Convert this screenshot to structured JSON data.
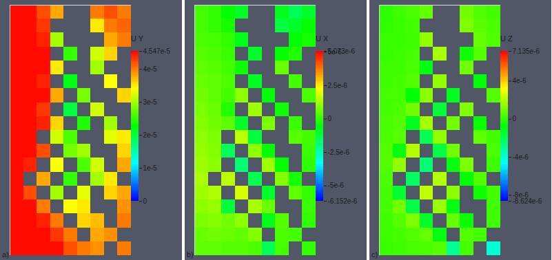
{
  "chart_data": [
    {
      "type": "heatmap",
      "panel_label": "a)",
      "colorbar_title": "U Y",
      "tick_labels": false,
      "colorbar_range": [
        0,
        4.547e-05
      ],
      "colorbar_ticks": [
        {
          "value": 4.547e-05,
          "label": "4.547e-5"
        },
        {
          "value": 4e-05,
          "label": "4e-5"
        },
        {
          "value": 3e-05,
          "label": "3e-5"
        },
        {
          "value": 2e-05,
          "label": "2e-5"
        },
        {
          "value": 1e-05,
          "label": "1e-5"
        },
        0
      ],
      "cells": [
        [
          4.5e-05,
          4.5e-05,
          4.2e-05,
          3.8e-05,
          null,
          null,
          4e-05,
          4.2e-05,
          4e-05
        ],
        [
          4.5e-05,
          4.5e-05,
          4.3e-05,
          null,
          null,
          null,
          3.5e-05,
          4e-05,
          4.1e-05
        ],
        [
          4.5e-05,
          4.5e-05,
          4.4e-05,
          3e-05,
          null,
          null,
          null,
          3.8e-05,
          4e-05
        ],
        [
          4.5e-05,
          4.5e-05,
          4.5e-05,
          null,
          2.5e-05,
          null,
          3.2e-05,
          3.6e-05,
          null
        ],
        [
          4.5e-05,
          4.5e-05,
          4.5e-05,
          3.5e-05,
          null,
          null,
          3e-05,
          null,
          null
        ],
        [
          4.5e-05,
          4.5e-05,
          4.4e-05,
          null,
          2.2e-05,
          null,
          null,
          3.4e-05,
          null
        ],
        [
          4.5e-05,
          4.5e-05,
          4.5e-05,
          3.8e-05,
          null,
          2.8e-05,
          null,
          null,
          3.6e-05
        ],
        [
          4.5e-05,
          4.5e-05,
          4.3e-05,
          null,
          2e-05,
          null,
          3.2e-05,
          null,
          null
        ],
        [
          4.5e-05,
          4.5e-05,
          4.4e-05,
          3.6e-05,
          null,
          2.4e-05,
          null,
          3e-05,
          null
        ],
        [
          4.5e-05,
          4.5e-05,
          null,
          3.2e-05,
          2.6e-05,
          null,
          null,
          3.3e-05,
          3.5e-05
        ],
        [
          4.5e-05,
          4.5e-05,
          4.2e-05,
          null,
          2.8e-05,
          3e-05,
          null,
          null,
          3.6e-05
        ],
        [
          4.5e-05,
          4.4e-05,
          null,
          3.4e-05,
          null,
          2.6e-05,
          3.2e-05,
          null,
          3.8e-05
        ],
        [
          4.5e-05,
          null,
          3.8e-05,
          null,
          2.5e-05,
          null,
          3e-05,
          3.5e-05,
          null
        ],
        [
          4.5e-05,
          4.2e-05,
          null,
          3e-05,
          null,
          3.3e-05,
          null,
          3.6e-05,
          3.8e-05
        ],
        [
          4.5e-05,
          4.5e-05,
          4e-05,
          null,
          3.4e-05,
          3.5e-05,
          null,
          null,
          3.9e-05
        ],
        [
          4.5e-05,
          4.5e-05,
          4.4e-05,
          4e-05,
          null,
          3.6e-05,
          3.7e-05,
          null,
          4e-05
        ],
        [
          4.5e-05,
          4.5e-05,
          4.5e-05,
          4.3e-05,
          4e-05,
          null,
          3.8e-05,
          3.9e-05,
          null
        ],
        [
          4.5e-05,
          4.5e-05,
          4.5e-05,
          4.5e-05,
          4.2e-05,
          4e-05,
          3.9e-05,
          null,
          4e-05
        ]
      ]
    },
    {
      "type": "heatmap",
      "panel_label": "b)",
      "colorbar_title": "U X",
      "tick_labels": false,
      "colorbar_range": [
        -6.152e-06,
        5.073e-06
      ],
      "colorbar_ticks": [
        {
          "value": 5.073e-06,
          "label": "5.073e-6"
        },
        {
          "value": 5e-06,
          "label": "5e-6"
        },
        {
          "value": 2.5e-06,
          "label": "2.5e-6"
        },
        0,
        {
          "value": -2.5e-06,
          "label": "-2.5e-6"
        },
        {
          "value": -5e-06,
          "label": "-5e-6"
        },
        {
          "value": -6.152e-06,
          "label": "-6.152e-6"
        }
      ],
      "cells": [
        [
          2e-07,
          0,
          -5e-07,
          -1e-06,
          null,
          null,
          -8e-07,
          -1.5e-06,
          -1e-06
        ],
        [
          2e-07,
          0,
          -3e-07,
          null,
          null,
          null,
          -1.2e-06,
          -1e-06,
          -5e-07
        ],
        [
          3e-07,
          2e-07,
          0,
          -8e-07,
          null,
          null,
          null,
          -6e-07,
          -3e-07
        ],
        [
          4e-07,
          3e-07,
          1e-07,
          null,
          -1e-06,
          null,
          -5e-07,
          -2e-07,
          null
        ],
        [
          5e-07,
          4e-07,
          2e-07,
          -4e-07,
          null,
          null,
          6e-07,
          null,
          null
        ],
        [
          6e-07,
          5e-07,
          3e-07,
          null,
          -9e-07,
          null,
          null,
          2e-07,
          null
        ],
        [
          7e-07,
          5e-07,
          2e-07,
          1e-06,
          null,
          -6e-07,
          null,
          null,
          3e-07
        ],
        [
          8e-07,
          6e-07,
          -2e-07,
          null,
          1.2e-06,
          null,
          -4e-07,
          null,
          null
        ],
        [
          9e-07,
          7e-07,
          5e-07,
          -1e-06,
          null,
          8e-07,
          null,
          1e-07,
          null
        ],
        [
          1e-06,
          8e-07,
          null,
          1.5e-06,
          -1.2e-06,
          null,
          null,
          4e-07,
          2e-07
        ],
        [
          1.1e-06,
          9e-07,
          -1.5e-06,
          null,
          1e-06,
          -5e-07,
          null,
          null,
          1e-07
        ],
        [
          1.2e-06,
          1e-06,
          null,
          -1.8e-06,
          null,
          1.2e-06,
          -6e-07,
          null,
          0
        ],
        [
          1.3e-06,
          null,
          1.5e-06,
          null,
          -1.4e-06,
          null,
          9e-07,
          -3e-07,
          null
        ],
        [
          1.2e-06,
          1.4e-06,
          null,
          1.8e-06,
          null,
          -1e-06,
          null,
          5e-07,
          0
        ],
        [
          1e-06,
          1.1e-06,
          -1.2e-06,
          null,
          1.3e-06,
          6e-07,
          null,
          null,
          1e-07
        ],
        [
          8e-07,
          9e-07,
          7e-07,
          1e-06,
          null,
          -8e-07,
          4e-07,
          null,
          0
        ],
        [
          6e-07,
          7e-07,
          6e-07,
          5e-07,
          9e-07,
          null,
          3e-07,
          2e-07,
          null
        ],
        [
          5e-07,
          5e-07,
          4e-07,
          4e-07,
          3e-07,
          -1.5e-06,
          2e-07,
          null,
          0
        ]
      ]
    },
    {
      "type": "heatmap",
      "panel_label": "c)",
      "colorbar_title": "U Z",
      "tick_labels": false,
      "colorbar_range": [
        -8.624e-06,
        7.135e-06
      ],
      "colorbar_ticks": [
        {
          "value": 7.135e-06,
          "label": "7.135e-6"
        },
        {
          "value": 4e-06,
          "label": "4e-6"
        },
        0,
        {
          "value": -4e-06,
          "label": "-4e-6"
        },
        {
          "value": -8e-06,
          "label": "-8e-6"
        },
        {
          "value": -8.624e-06,
          "label": "-8.624e-6"
        }
      ],
      "cells": [
        [
          0,
          2e-07,
          4e-07,
          8e-07,
          null,
          null,
          1e-06,
          5e-07,
          3e-07
        ],
        [
          0,
          1e-07,
          3e-07,
          null,
          null,
          null,
          1.2e-06,
          6e-07,
          4e-07
        ],
        [
          1e-07,
          1e-07,
          2e-07,
          1.5e-06,
          null,
          null,
          null,
          8e-07,
          5e-07
        ],
        [
          1e-07,
          2e-07,
          3e-07,
          null,
          1.8e-06,
          null,
          -5e-07,
          6e-07,
          null
        ],
        [
          2e-07,
          2e-07,
          4e-07,
          -1e-06,
          null,
          null,
          1e-06,
          null,
          null
        ],
        [
          2e-07,
          3e-07,
          5e-07,
          null,
          1.5e-06,
          null,
          null,
          -8e-07,
          null
        ],
        [
          3e-07,
          3e-07,
          -8e-07,
          1.4e-06,
          null,
          -1.2e-06,
          null,
          null,
          5e-07
        ],
        [
          3e-07,
          4e-07,
          1e-06,
          null,
          -1.6e-06,
          null,
          1.2e-06,
          null,
          null
        ],
        [
          4e-07,
          5e-07,
          -1.2e-06,
          1.8e-06,
          null,
          1e-06,
          null,
          -6e-07,
          null
        ],
        [
          4e-07,
          6e-07,
          null,
          -2e-06,
          1.5e-06,
          null,
          null,
          7e-07,
          3e-07
        ],
        [
          5e-07,
          -1e-06,
          2e-06,
          null,
          -1.8e-06,
          1e-06,
          null,
          null,
          4e-07
        ],
        [
          5e-07,
          1.5e-06,
          null,
          -2.5e-06,
          null,
          -1e-06,
          1.2e-06,
          null,
          2e-07
        ],
        [
          4e-07,
          null,
          -2.2e-06,
          null,
          2e-06,
          null,
          -8e-07,
          5e-07,
          null
        ],
        [
          3e-07,
          -1.5e-06,
          null,
          2.2e-06,
          null,
          1.4e-06,
          null,
          -5e-07,
          3e-07
        ],
        [
          3e-07,
          1e-06,
          -1.8e-06,
          null,
          1.6e-06,
          -1e-06,
          null,
          null,
          2e-07
        ],
        [
          2e-07,
          5e-07,
          1.2e-06,
          -1.4e-06,
          null,
          8e-07,
          -6e-07,
          null,
          2e-07
        ],
        [
          2e-07,
          3e-07,
          5e-07,
          8e-07,
          -1e-06,
          null,
          5e-07,
          3e-07,
          null
        ],
        [
          1e-07,
          2e-07,
          3e-07,
          4e-07,
          6e-07,
          -3e-06,
          3e-07,
          null,
          -4e-06
        ]
      ]
    }
  ]
}
